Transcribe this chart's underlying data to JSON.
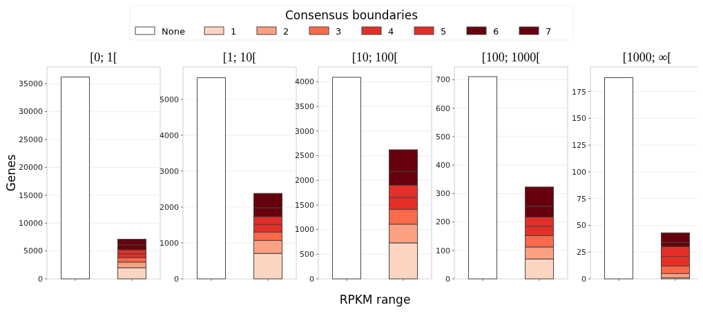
{
  "chart_data": [
    {
      "type": "bar",
      "title": "[0; 1[",
      "ylabel": "Genes",
      "legend_title": "Consensus boundaries",
      "legend": "top",
      "stacked": true,
      "grid": "y",
      "tick_labels": "y",
      "categories": [
        null,
        null
      ],
      "ylim": [
        0,
        38000
      ],
      "yticks": [
        0,
        5000,
        10000,
        15000,
        20000,
        25000,
        30000,
        35000
      ],
      "series": [
        {
          "name": "None",
          "color": "#ffffff",
          "values": [
            36200,
            null
          ]
        },
        {
          "name": "1",
          "color": "#fdd4c2",
          "values": [
            null,
            2000
          ]
        },
        {
          "name": "2",
          "color": "#fca082",
          "values": [
            null,
            1000
          ]
        },
        {
          "name": "3",
          "color": "#fb6a4a",
          "values": [
            null,
            800
          ]
        },
        {
          "name": "4",
          "color": "#e32f27",
          "values": [
            null,
            700
          ]
        },
        {
          "name": "5",
          "color": "#e32f27",
          "values": [
            null,
            700
          ]
        },
        {
          "name": "6",
          "color": "#67000d",
          "values": [
            null,
            900
          ]
        },
        {
          "name": "7",
          "color": "#67000d",
          "values": [
            null,
            1000
          ]
        }
      ]
    },
    {
      "type": "bar",
      "title": "[1; 10[",
      "stacked": true,
      "grid": "y",
      "tick_labels": "y",
      "categories": [
        null,
        null
      ],
      "ylim": [
        0,
        5900
      ],
      "yticks": [
        0,
        1000,
        2000,
        3000,
        4000,
        5000
      ],
      "series": [
        {
          "color": "#ffffff",
          "values": [
            5600,
            null
          ]
        },
        {
          "color": "#fdd4c2",
          "values": [
            null,
            710
          ]
        },
        {
          "color": "#fca082",
          "values": [
            null,
            360
          ]
        },
        {
          "color": "#fb6a4a",
          "values": [
            null,
            230
          ]
        },
        {
          "color": "#e32f27",
          "values": [
            null,
            220
          ]
        },
        {
          "color": "#e32f27",
          "values": [
            null,
            210
          ]
        },
        {
          "color": "#67000d",
          "values": [
            null,
            250
          ]
        },
        {
          "color": "#67000d",
          "values": [
            null,
            400
          ]
        }
      ]
    },
    {
      "type": "bar",
      "title": "[10; 100[",
      "xlabel": "RPKM range",
      "stacked": true,
      "grid": "y",
      "tick_labels": "y",
      "categories": [
        null,
        null
      ],
      "ylim": [
        0,
        4300
      ],
      "yticks": [
        0,
        500,
        1000,
        1500,
        2000,
        2500,
        3000,
        3500,
        4000
      ],
      "series": [
        {
          "color": "#ffffff",
          "values": [
            4090,
            null
          ]
        },
        {
          "color": "#fdd4c2",
          "values": [
            null,
            730
          ]
        },
        {
          "color": "#fca082",
          "values": [
            null,
            380
          ]
        },
        {
          "color": "#fb6a4a",
          "values": [
            null,
            300
          ]
        },
        {
          "color": "#e32f27",
          "values": [
            null,
            240
          ]
        },
        {
          "color": "#e32f27",
          "values": [
            null,
            250
          ]
        },
        {
          "color": "#67000d",
          "values": [
            null,
            280
          ]
        },
        {
          "color": "#67000d",
          "values": [
            null,
            440
          ]
        }
      ]
    },
    {
      "type": "bar",
      "title": "[100; 1000[",
      "stacked": true,
      "grid": "y",
      "tick_labels": "y",
      "categories": [
        null,
        null
      ],
      "ylim": [
        0,
        745
      ],
      "yticks": [
        0,
        100,
        200,
        300,
        400,
        500,
        600,
        700
      ],
      "series": [
        {
          "color": "#ffffff",
          "values": [
            711,
            null
          ]
        },
        {
          "color": "#fdd4c2",
          "values": [
            null,
            70
          ]
        },
        {
          "color": "#fca082",
          "values": [
            null,
            42
          ]
        },
        {
          "color": "#fb6a4a",
          "values": [
            null,
            40
          ]
        },
        {
          "color": "#e32f27",
          "values": [
            null,
            33
          ]
        },
        {
          "color": "#e32f27",
          "values": [
            null,
            32
          ]
        },
        {
          "color": "#67000d",
          "values": [
            null,
            38
          ]
        },
        {
          "color": "#67000d",
          "values": [
            null,
            68
          ]
        }
      ]
    },
    {
      "type": "bar",
      "title": "[1000; ∞[",
      "stacked": true,
      "grid": "y",
      "tick_labels": "y",
      "categories": [
        null,
        null
      ],
      "ylim": [
        0,
        198
      ],
      "yticks": [
        0,
        25,
        50,
        75,
        100,
        125,
        150,
        175
      ],
      "series": [
        {
          "color": "#ffffff",
          "values": [
            188,
            null
          ]
        },
        {
          "color": "#fdd4c2",
          "values": [
            null,
            1
          ]
        },
        {
          "color": "#fca082",
          "values": [
            null,
            4
          ]
        },
        {
          "color": "#fb6a4a",
          "values": [
            null,
            7
          ]
        },
        {
          "color": "#e32f27",
          "values": [
            null,
            9
          ]
        },
        {
          "color": "#e32f27",
          "values": [
            null,
            9
          ]
        },
        {
          "color": "#67000d",
          "values": [
            null,
            4
          ]
        },
        {
          "color": "#67000d",
          "values": [
            null,
            9
          ]
        }
      ]
    }
  ]
}
